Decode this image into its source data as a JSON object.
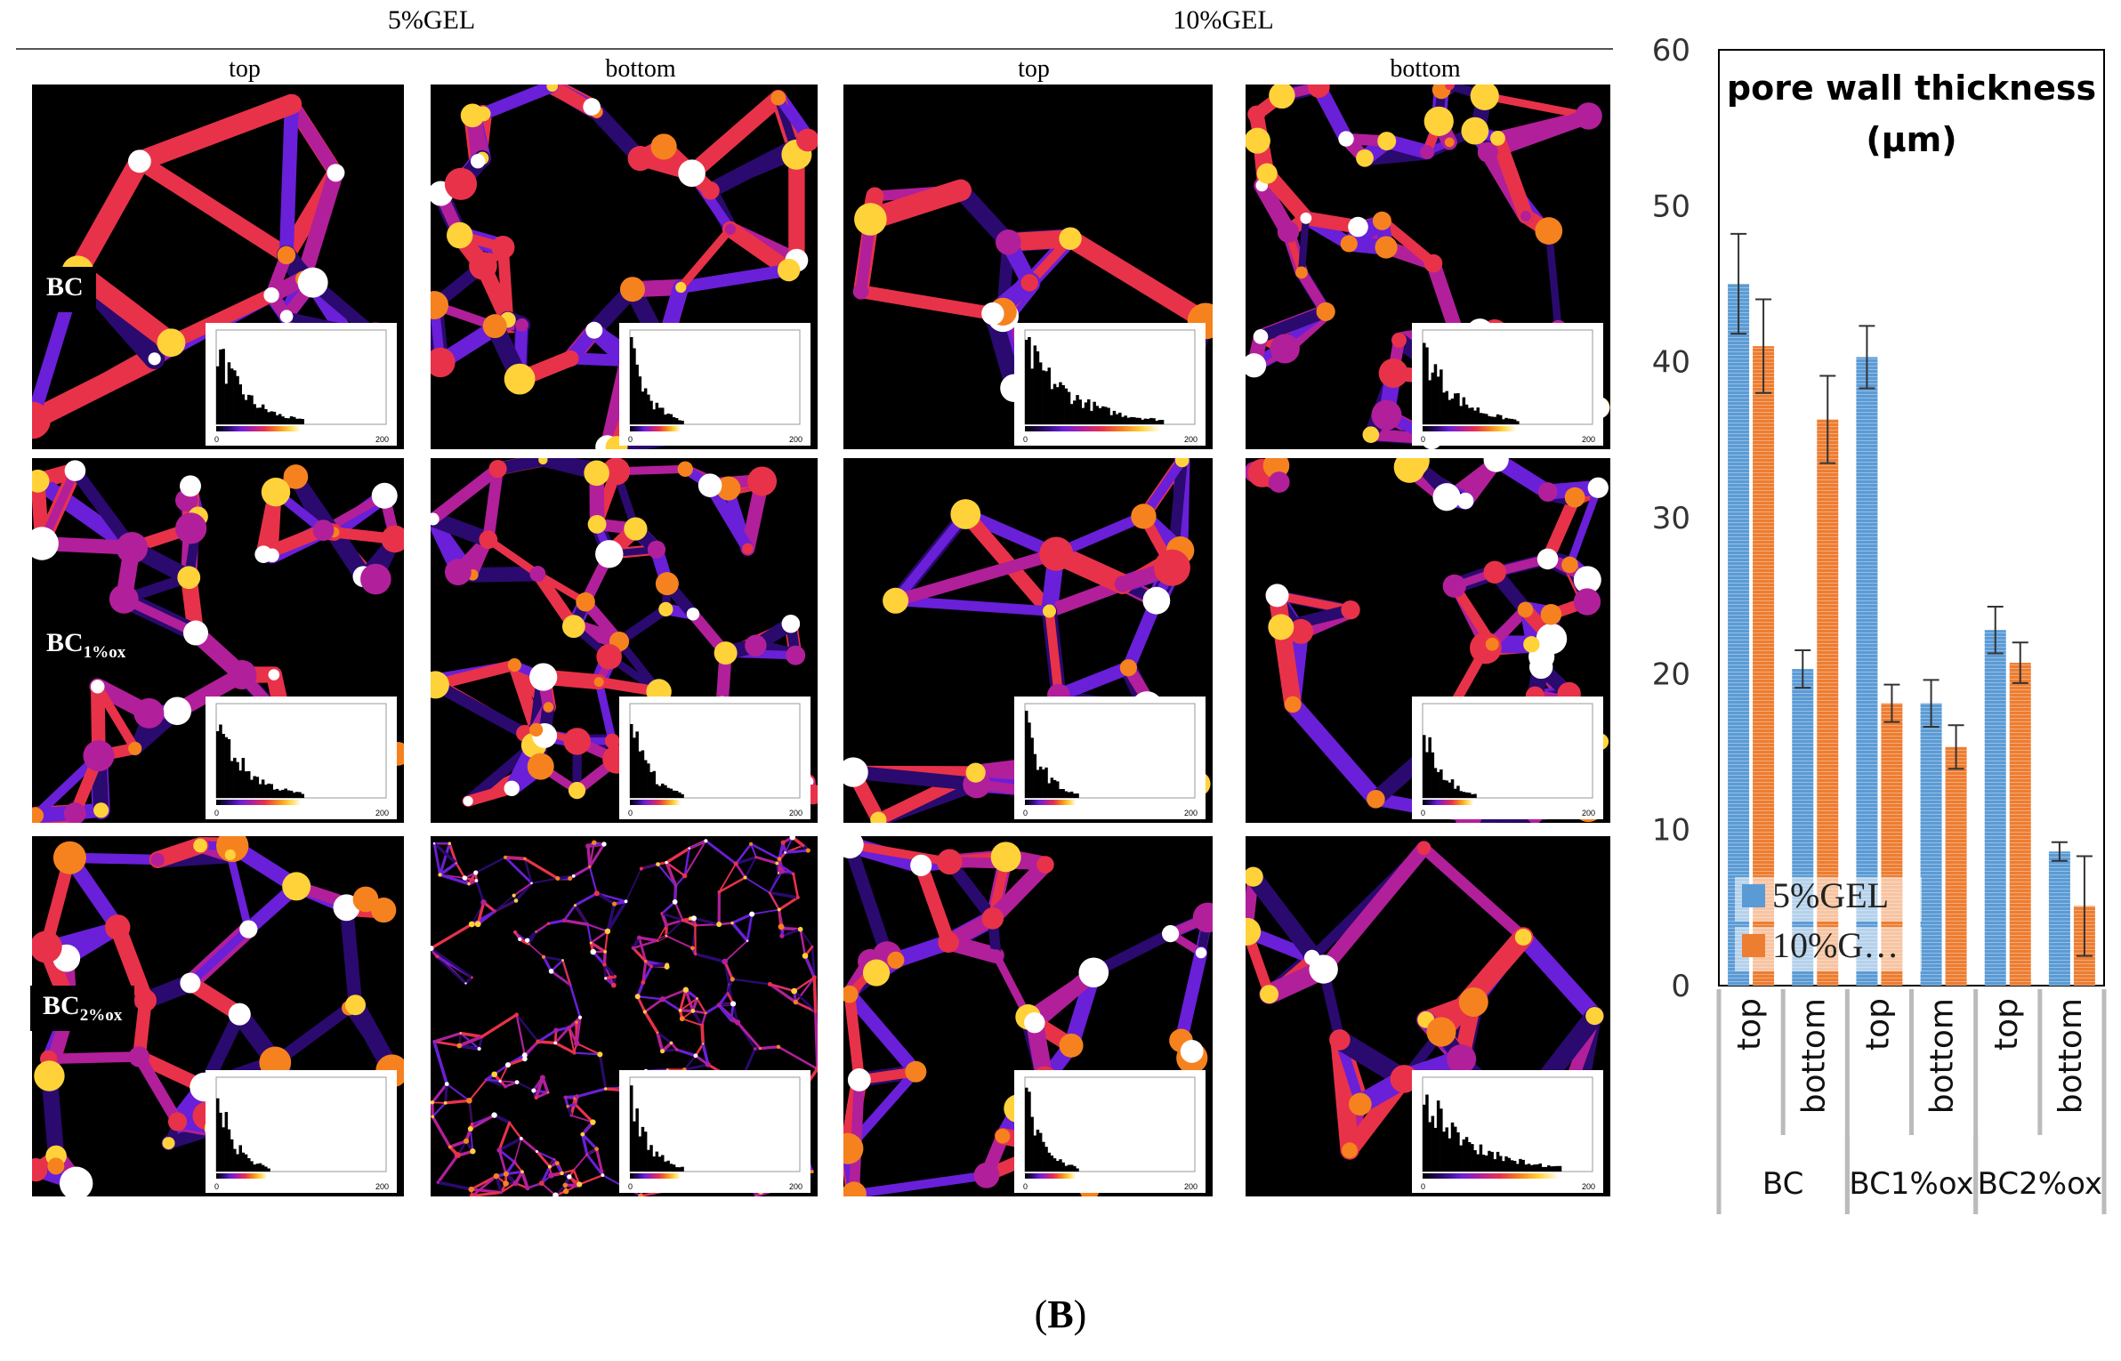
{
  "figure": {
    "caption_open": "(",
    "caption_label": "B",
    "caption_close": ")"
  },
  "micrographs": {
    "groups": [
      "5%GEL",
      "10%GEL"
    ],
    "columns": [
      "top",
      "bottom",
      "top",
      "bottom"
    ],
    "rows": [
      {
        "label_main": "BC",
        "label_sub": ""
      },
      {
        "label_main": "BC",
        "label_sub": "1%ox"
      },
      {
        "label_main": "BC",
        "label_sub": "2%ox"
      }
    ],
    "histogram_axis": {
      "min": "0",
      "max": "200"
    },
    "colormap": [
      "#000000",
      "#2a0a6e",
      "#6a1fd8",
      "#b21f9a",
      "#e8324a",
      "#f5821f",
      "#ffd23a",
      "#ffffff"
    ]
  },
  "chart_data": {
    "type": "bar",
    "title": "pore wall thickness (µm)",
    "title_line1": "pore wall thickness",
    "title_line2": "(µm)",
    "categories": [
      "top",
      "bottom",
      "top",
      "bottom",
      "top",
      "bottom"
    ],
    "groups": [
      {
        "name": "BC",
        "span": [
          0,
          1
        ]
      },
      {
        "name": "BC1%ox",
        "span": [
          2,
          3
        ]
      },
      {
        "name": "BC2%ox",
        "span": [
          4,
          5
        ]
      }
    ],
    "series": [
      {
        "name": "5%GEL",
        "values": [
          45.0,
          20.3,
          40.3,
          18.1,
          22.8,
          8.6
        ],
        "errors": [
          3.2,
          1.2,
          2.0,
          1.5,
          1.5,
          0.6
        ],
        "color": "#5b9bd5"
      },
      {
        "name": "10%G…",
        "values": [
          41.0,
          36.3,
          18.1,
          15.3,
          20.7,
          5.1
        ],
        "errors": [
          3.0,
          2.8,
          1.2,
          1.4,
          1.3,
          3.2
        ],
        "color": "#ed7d31"
      }
    ],
    "ylim": [
      0,
      60
    ],
    "yticks": [
      "0",
      "10",
      "20",
      "30",
      "40",
      "50",
      "60"
    ],
    "legend_position": "bottom-left",
    "grid": false
  }
}
